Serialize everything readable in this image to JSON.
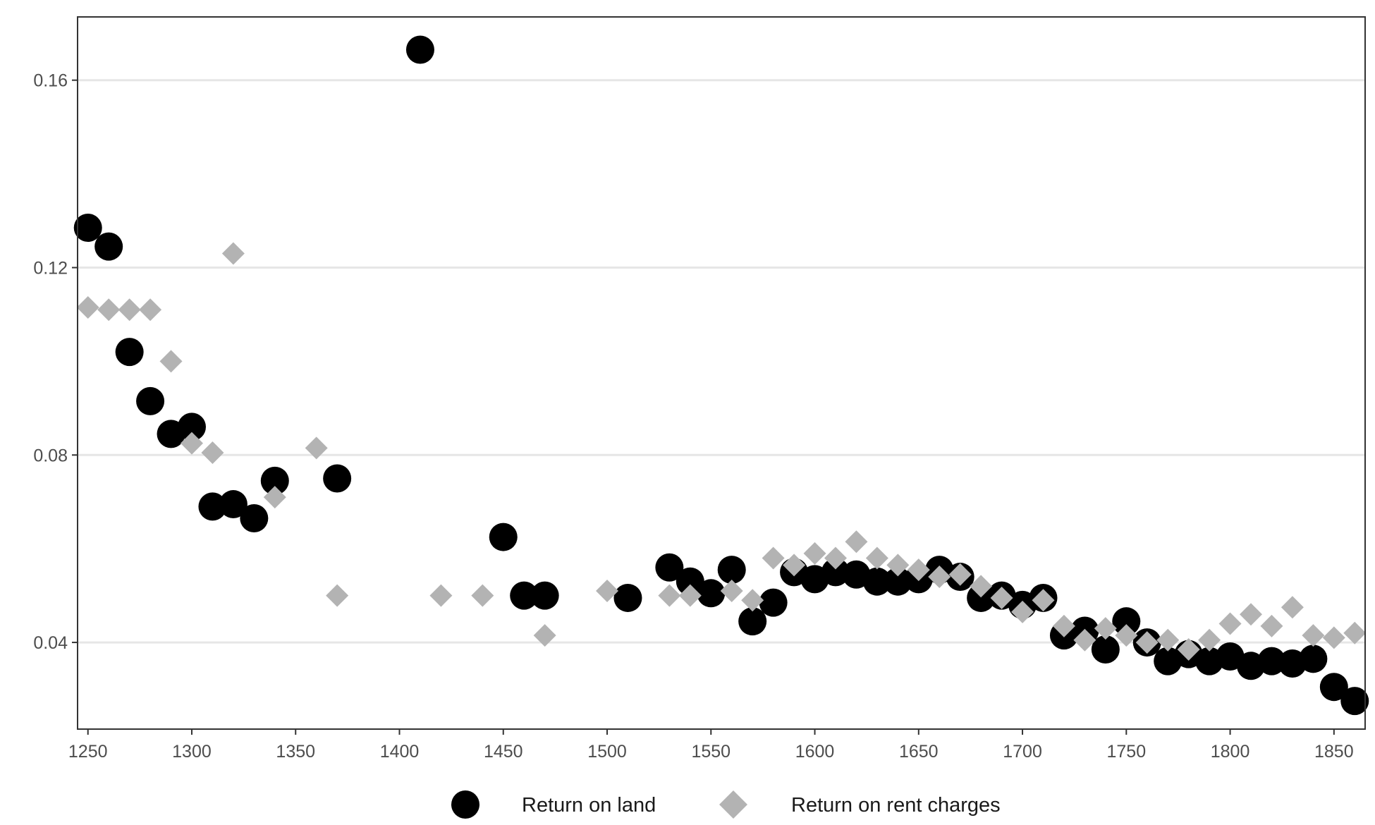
{
  "chart_data": {
    "type": "scatter",
    "title": "",
    "xlabel": "",
    "ylabel": "",
    "xlim": [
      1245,
      1865
    ],
    "ylim": [
      0.0215,
      0.1735
    ],
    "x_ticks": [
      1250,
      1300,
      1350,
      1400,
      1450,
      1500,
      1550,
      1600,
      1650,
      1700,
      1750,
      1800,
      1850
    ],
    "y_ticks": [
      0.04,
      0.08,
      0.12,
      0.16
    ],
    "x_tick_labels": [
      "1250",
      "1300",
      "1350",
      "1400",
      "1450",
      "1500",
      "1550",
      "1600",
      "1650",
      "1700",
      "1750",
      "1800",
      "1850"
    ],
    "y_tick_labels": [
      "0.04",
      "0.08",
      "0.12",
      "0.16"
    ],
    "grid": "horizontal major",
    "legend_position": "bottom",
    "series": [
      {
        "name": "Return on land",
        "marker": "circle",
        "color": "#000000",
        "points": [
          [
            1250,
            0.1285
          ],
          [
            1260,
            0.1245
          ],
          [
            1270,
            0.102
          ],
          [
            1280,
            0.0915
          ],
          [
            1290,
            0.0845
          ],
          [
            1300,
            0.086
          ],
          [
            1310,
            0.069
          ],
          [
            1320,
            0.0695
          ],
          [
            1330,
            0.0665
          ],
          [
            1340,
            0.0745
          ],
          [
            1370,
            0.075
          ],
          [
            1410,
            0.1665
          ],
          [
            1450,
            0.0625
          ],
          [
            1460,
            0.05
          ],
          [
            1470,
            0.05
          ],
          [
            1510,
            0.0495
          ],
          [
            1530,
            0.056
          ],
          [
            1540,
            0.053
          ],
          [
            1550,
            0.0505
          ],
          [
            1560,
            0.0555
          ],
          [
            1570,
            0.0445
          ],
          [
            1580,
            0.0485
          ],
          [
            1590,
            0.055
          ],
          [
            1600,
            0.0535
          ],
          [
            1610,
            0.055
          ],
          [
            1620,
            0.0545
          ],
          [
            1630,
            0.053
          ],
          [
            1640,
            0.053
          ],
          [
            1650,
            0.0535
          ],
          [
            1660,
            0.0555
          ],
          [
            1670,
            0.054
          ],
          [
            1680,
            0.0495
          ],
          [
            1690,
            0.05
          ],
          [
            1700,
            0.048
          ],
          [
            1710,
            0.0495
          ],
          [
            1720,
            0.0415
          ],
          [
            1730,
            0.0425
          ],
          [
            1740,
            0.0385
          ],
          [
            1750,
            0.0445
          ],
          [
            1760,
            0.04
          ],
          [
            1770,
            0.036
          ],
          [
            1780,
            0.0375
          ],
          [
            1790,
            0.036
          ],
          [
            1800,
            0.037
          ],
          [
            1810,
            0.035
          ],
          [
            1820,
            0.036
          ],
          [
            1830,
            0.0355
          ],
          [
            1840,
            0.0365
          ],
          [
            1850,
            0.0305
          ],
          [
            1860,
            0.0275
          ]
        ]
      },
      {
        "name": "Return on rent charges",
        "marker": "diamond",
        "color": "#b3b3b3",
        "points": [
          [
            1250,
            0.1115
          ],
          [
            1260,
            0.111
          ],
          [
            1270,
            0.111
          ],
          [
            1280,
            0.111
          ],
          [
            1290,
            0.1
          ],
          [
            1300,
            0.0825
          ],
          [
            1310,
            0.0805
          ],
          [
            1320,
            0.123
          ],
          [
            1340,
            0.071
          ],
          [
            1360,
            0.0815
          ],
          [
            1370,
            0.05
          ],
          [
            1420,
            0.05
          ],
          [
            1440,
            0.05
          ],
          [
            1470,
            0.0415
          ],
          [
            1500,
            0.051
          ],
          [
            1530,
            0.05
          ],
          [
            1540,
            0.05
          ],
          [
            1560,
            0.051
          ],
          [
            1570,
            0.049
          ],
          [
            1580,
            0.058
          ],
          [
            1590,
            0.0565
          ],
          [
            1600,
            0.059
          ],
          [
            1610,
            0.058
          ],
          [
            1620,
            0.0615
          ],
          [
            1630,
            0.058
          ],
          [
            1640,
            0.0565
          ],
          [
            1650,
            0.0555
          ],
          [
            1660,
            0.054
          ],
          [
            1670,
            0.0545
          ],
          [
            1680,
            0.052
          ],
          [
            1690,
            0.0495
          ],
          [
            1700,
            0.0465
          ],
          [
            1710,
            0.049
          ],
          [
            1720,
            0.0435
          ],
          [
            1730,
            0.0405
          ],
          [
            1740,
            0.043
          ],
          [
            1750,
            0.0415
          ],
          [
            1760,
            0.04
          ],
          [
            1770,
            0.0405
          ],
          [
            1780,
            0.0385
          ],
          [
            1790,
            0.0405
          ],
          [
            1800,
            0.044
          ],
          [
            1810,
            0.046
          ],
          [
            1820,
            0.0435
          ],
          [
            1830,
            0.0475
          ],
          [
            1840,
            0.0415
          ],
          [
            1850,
            0.041
          ],
          [
            1860,
            0.042
          ]
        ]
      }
    ]
  }
}
